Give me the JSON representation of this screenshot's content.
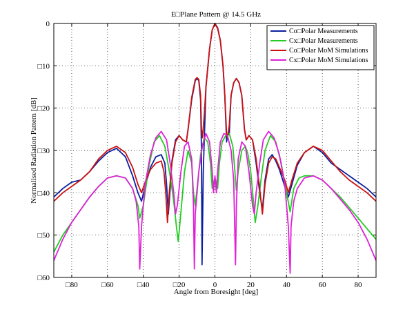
{
  "chart_data": {
    "type": "line",
    "title": "E□Plane Pattern @ 14.5 GHz",
    "xlabel": "Angle from Boresight [deg]",
    "ylabel": "Normalised Radiation Pattern [dB]",
    "xlim": [
      -90,
      90
    ],
    "ylim": [
      -60,
      0
    ],
    "xticks": [
      -80,
      -60,
      -40,
      -20,
      0,
      20,
      40,
      60,
      80
    ],
    "xtick_labels": [
      "□80",
      "□60",
      "□40",
      "□20",
      "0",
      "20",
      "40",
      "60",
      "80"
    ],
    "yticks": [
      0,
      -10,
      -20,
      -30,
      -40,
      -50,
      -60
    ],
    "ytick_labels": [
      "0",
      "□10",
      "□20",
      "□30",
      "□40",
      "□50",
      "□60"
    ],
    "grid": true,
    "legend_position": "top-right",
    "series": [
      {
        "name": "Co□Polar Measurements",
        "color": "#0a1fa0",
        "points": [
          [
            -90,
            -41
          ],
          [
            -85,
            -39
          ],
          [
            -80,
            -37.5
          ],
          [
            -75,
            -37
          ],
          [
            -70,
            -35
          ],
          [
            -65,
            -32.5
          ],
          [
            -60,
            -30.5
          ],
          [
            -55,
            -29.5
          ],
          [
            -50,
            -31.5
          ],
          [
            -46,
            -36
          ],
          [
            -43,
            -40
          ],
          [
            -41,
            -42
          ],
          [
            -39,
            -38.5
          ],
          [
            -36,
            -34
          ],
          [
            -33,
            -31.5
          ],
          [
            -30,
            -31
          ],
          [
            -28,
            -33
          ],
          [
            -27,
            -38
          ],
          [
            -26,
            -45
          ],
          [
            -25,
            -39
          ],
          [
            -24,
            -32.5
          ],
          [
            -22,
            -27.5
          ],
          [
            -20,
            -26.5
          ],
          [
            -18,
            -27.5
          ],
          [
            -16,
            -28
          ],
          [
            -15,
            -25
          ],
          [
            -13,
            -18
          ],
          [
            -11,
            -13.5
          ],
          [
            -10,
            -13
          ],
          [
            -9,
            -13.5
          ],
          [
            -8,
            -18
          ],
          [
            -7.5,
            -30
          ],
          [
            -7.2,
            -57
          ],
          [
            -6.5,
            -35
          ],
          [
            -5,
            -15
          ],
          [
            -3,
            -6
          ],
          [
            -1.5,
            -1.5
          ],
          [
            0,
            0
          ],
          [
            1.5,
            -1
          ],
          [
            3,
            -4
          ],
          [
            4.5,
            -10
          ],
          [
            5.5,
            -17
          ],
          [
            6.5,
            -28
          ],
          [
            7,
            -26.5
          ],
          [
            8,
            -26
          ],
          [
            9,
            -17
          ],
          [
            10.5,
            -14
          ],
          [
            12,
            -13
          ],
          [
            13.5,
            -14
          ],
          [
            15,
            -17
          ],
          [
            16.5,
            -25
          ],
          [
            17.5,
            -27.5
          ],
          [
            19,
            -26.5
          ],
          [
            21,
            -27.5
          ],
          [
            23,
            -33
          ],
          [
            25,
            -40
          ],
          [
            26.5,
            -44
          ],
          [
            28,
            -37
          ],
          [
            30,
            -32
          ],
          [
            32,
            -31
          ],
          [
            34,
            -32.5
          ],
          [
            36,
            -34.5
          ],
          [
            39,
            -38.5
          ],
          [
            41,
            -41
          ],
          [
            43,
            -38
          ],
          [
            46,
            -33.5
          ],
          [
            50,
            -30.5
          ],
          [
            55,
            -29
          ],
          [
            60,
            -30.5
          ],
          [
            65,
            -33
          ],
          [
            70,
            -34.5
          ],
          [
            75,
            -36
          ],
          [
            80,
            -37.5
          ],
          [
            85,
            -39
          ],
          [
            90,
            -41
          ]
        ]
      },
      {
        "name": "Cx□Polar Measurements",
        "color": "#22cc22",
        "points": [
          [
            -90,
            -54
          ],
          [
            -85,
            -50
          ],
          [
            -80,
            -47
          ],
          [
            -75,
            -44
          ],
          [
            -70,
            -41
          ],
          [
            -65,
            -38.5
          ],
          [
            -60,
            -36.5
          ],
          [
            -55,
            -36
          ],
          [
            -50,
            -36.5
          ],
          [
            -46,
            -39
          ],
          [
            -43,
            -43
          ],
          [
            -42,
            -46
          ],
          [
            -40,
            -43
          ],
          [
            -37,
            -34
          ],
          [
            -34,
            -28
          ],
          [
            -31,
            -26.5
          ],
          [
            -28,
            -29
          ],
          [
            -25,
            -36
          ],
          [
            -23,
            -42
          ],
          [
            -21.5,
            -48
          ],
          [
            -20.5,
            -51.5
          ],
          [
            -19.5,
            -47
          ],
          [
            -17,
            -35
          ],
          [
            -15,
            -30
          ],
          [
            -13,
            -33
          ],
          [
            -12,
            -40
          ],
          [
            -11,
            -43
          ],
          [
            -10,
            -39
          ],
          [
            -8,
            -31
          ],
          [
            -6,
            -27
          ],
          [
            -4,
            -28
          ],
          [
            -2.5,
            -33
          ],
          [
            -1.5,
            -39
          ],
          [
            -1,
            -38
          ],
          [
            0,
            -36.5
          ],
          [
            1,
            -38
          ],
          [
            1.5,
            -39
          ],
          [
            2.5,
            -33
          ],
          [
            4,
            -28
          ],
          [
            6,
            -26.5
          ],
          [
            8,
            -26
          ],
          [
            10,
            -29
          ],
          [
            11,
            -34
          ],
          [
            12,
            -39.5
          ],
          [
            13,
            -35
          ],
          [
            15,
            -30
          ],
          [
            17,
            -29
          ],
          [
            18.5,
            -31
          ],
          [
            20,
            -35
          ],
          [
            21.5,
            -42
          ],
          [
            22.5,
            -47
          ],
          [
            24,
            -43
          ],
          [
            26,
            -36
          ],
          [
            28,
            -30
          ],
          [
            31,
            -26.5
          ],
          [
            34,
            -28
          ],
          [
            37,
            -33
          ],
          [
            40,
            -40
          ],
          [
            42,
            -44.5
          ],
          [
            44,
            -39
          ],
          [
            47,
            -36.5
          ],
          [
            50,
            -36
          ],
          [
            55,
            -36
          ],
          [
            60,
            -37
          ],
          [
            65,
            -39
          ],
          [
            70,
            -41
          ],
          [
            75,
            -43.5
          ],
          [
            80,
            -46
          ],
          [
            85,
            -48.5
          ],
          [
            90,
            -51
          ]
        ]
      },
      {
        "name": "Co□Polar MoM Simulations",
        "color": "#cc1111",
        "points": [
          [
            -90,
            -42
          ],
          [
            -85,
            -40
          ],
          [
            -80,
            -38.5
          ],
          [
            -75,
            -37
          ],
          [
            -70,
            -35
          ],
          [
            -65,
            -32
          ],
          [
            -60,
            -30
          ],
          [
            -55,
            -29
          ],
          [
            -50,
            -30.5
          ],
          [
            -46,
            -34
          ],
          [
            -43,
            -38
          ],
          [
            -41,
            -40
          ],
          [
            -39,
            -37.5
          ],
          [
            -36,
            -34.5
          ],
          [
            -33,
            -33
          ],
          [
            -30,
            -32.5
          ],
          [
            -28.5,
            -35
          ],
          [
            -27.5,
            -40
          ],
          [
            -26.5,
            -47
          ],
          [
            -25.5,
            -40
          ],
          [
            -24,
            -33
          ],
          [
            -22,
            -28
          ],
          [
            -20,
            -26.5
          ],
          [
            -18,
            -27.5
          ],
          [
            -16,
            -28
          ],
          [
            -15,
            -25
          ],
          [
            -13,
            -17.5
          ],
          [
            -11,
            -13.2
          ],
          [
            -10,
            -12.8
          ],
          [
            -9,
            -13.2
          ],
          [
            -8,
            -17
          ],
          [
            -7.5,
            -25
          ],
          [
            -7,
            -27
          ],
          [
            -6,
            -22
          ],
          [
            -5,
            -15
          ],
          [
            -3,
            -6
          ],
          [
            -1.5,
            -1.5
          ],
          [
            0,
            0
          ],
          [
            1.5,
            -1.2
          ],
          [
            3,
            -4
          ],
          [
            4.5,
            -10
          ],
          [
            5.5,
            -17
          ],
          [
            6.5,
            -26
          ],
          [
            7,
            -27
          ],
          [
            8,
            -24
          ],
          [
            9,
            -17
          ],
          [
            10.5,
            -14
          ],
          [
            12,
            -13
          ],
          [
            13.5,
            -14
          ],
          [
            15,
            -17
          ],
          [
            16.5,
            -25
          ],
          [
            17.5,
            -27.5
          ],
          [
            19,
            -26.5
          ],
          [
            21,
            -27.5
          ],
          [
            23,
            -32
          ],
          [
            25,
            -39
          ],
          [
            26.5,
            -45
          ],
          [
            28,
            -38
          ],
          [
            30,
            -33
          ],
          [
            32,
            -31.5
          ],
          [
            34,
            -32
          ],
          [
            36,
            -34
          ],
          [
            39,
            -37
          ],
          [
            41,
            -40
          ],
          [
            43,
            -37
          ],
          [
            46,
            -33
          ],
          [
            50,
            -30.5
          ],
          [
            55,
            -29
          ],
          [
            60,
            -30
          ],
          [
            65,
            -32.5
          ],
          [
            70,
            -35
          ],
          [
            75,
            -37
          ],
          [
            80,
            -38.5
          ],
          [
            85,
            -40
          ],
          [
            90,
            -42
          ]
        ]
      },
      {
        "name": "Cx□Polar MoM Simulations",
        "color": "#e020d8",
        "points": [
          [
            -90,
            -56
          ],
          [
            -85,
            -51
          ],
          [
            -80,
            -47
          ],
          [
            -75,
            -44
          ],
          [
            -70,
            -41
          ],
          [
            -65,
            -38.5
          ],
          [
            -60,
            -36.5
          ],
          [
            -55,
            -36
          ],
          [
            -50,
            -36.5
          ],
          [
            -46,
            -39
          ],
          [
            -44,
            -42
          ],
          [
            -42.5,
            -48
          ],
          [
            -42,
            -58
          ],
          [
            -41,
            -48
          ],
          [
            -39,
            -38
          ],
          [
            -36,
            -31
          ],
          [
            -33,
            -27
          ],
          [
            -30,
            -25.5
          ],
          [
            -27,
            -27.5
          ],
          [
            -25,
            -33
          ],
          [
            -23,
            -40
          ],
          [
            -22,
            -45
          ],
          [
            -21,
            -43
          ],
          [
            -19,
            -35
          ],
          [
            -17,
            -29
          ],
          [
            -15,
            -28
          ],
          [
            -13,
            -32
          ],
          [
            -12,
            -43
          ],
          [
            -11.5,
            -58
          ],
          [
            -11,
            -45
          ],
          [
            -9,
            -35
          ],
          [
            -7,
            -29
          ],
          [
            -5,
            -26
          ],
          [
            -3,
            -28
          ],
          [
            -1.5,
            -35
          ],
          [
            -0.8,
            -40
          ],
          [
            0,
            -36
          ],
          [
            0.8,
            -40
          ],
          [
            1.5,
            -35
          ],
          [
            3,
            -28
          ],
          [
            5,
            -26
          ],
          [
            7,
            -26.5
          ],
          [
            9,
            -30
          ],
          [
            10.5,
            -37
          ],
          [
            11.5,
            -57
          ],
          [
            12,
            -43
          ],
          [
            13,
            -32
          ],
          [
            15,
            -28
          ],
          [
            17,
            -29
          ],
          [
            19,
            -35
          ],
          [
            21,
            -43
          ],
          [
            22,
            -45
          ],
          [
            23,
            -40
          ],
          [
            25,
            -33
          ],
          [
            27,
            -27.5
          ],
          [
            30,
            -25.5
          ],
          [
            33,
            -27
          ],
          [
            36,
            -31
          ],
          [
            39,
            -38
          ],
          [
            41,
            -48
          ],
          [
            42,
            -59
          ],
          [
            42.5,
            -48
          ],
          [
            44,
            -42
          ],
          [
            46,
            -39
          ],
          [
            50,
            -36.5
          ],
          [
            55,
            -36
          ],
          [
            60,
            -37
          ],
          [
            65,
            -39
          ],
          [
            70,
            -41.5
          ],
          [
            75,
            -44
          ],
          [
            80,
            -47
          ],
          [
            85,
            -51
          ],
          [
            90,
            -56
          ]
        ]
      }
    ]
  }
}
